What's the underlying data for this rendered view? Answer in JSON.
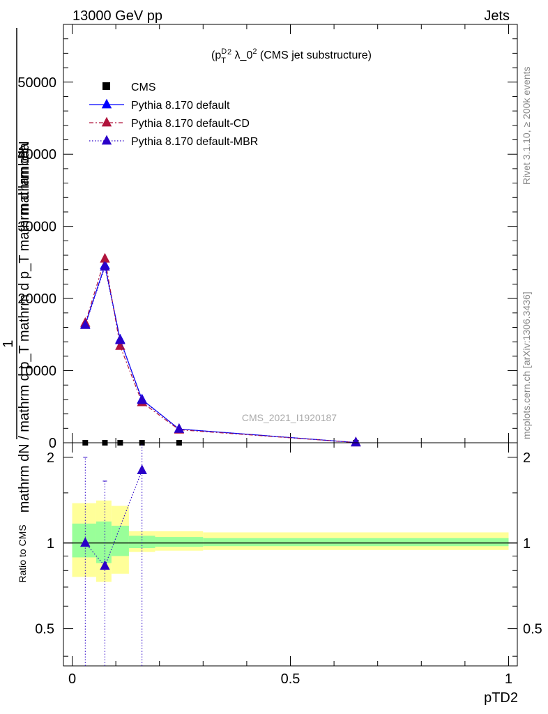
{
  "header": {
    "left": "13000 GeV pp",
    "right": "Jets"
  },
  "plot_title": "(p_T^D)^2 λ_0^2 (CMS jet substructure)",
  "watermark": "CMS_2021_I1920187",
  "side_labels": {
    "rivet": "Rivet 3.1.10, ≥ 200k events",
    "mcplots": "mcplots.cern.ch [arXiv:1306.3436]"
  },
  "ylabel_main_lines": [
    "1",
    "mathrm dN / mathrm d p_T mathrm d p_T mathrm d lambda",
    "mathrm d²N"
  ],
  "colors": {
    "cms": "#000000",
    "default": "#0000ff",
    "cd": "#b0143c",
    "mbr": "#2a00c8",
    "band_inner": "#99ff99",
    "band_outer": "#ffff99"
  },
  "chart_data": [
    {
      "type": "line",
      "panel": "main",
      "xlabel": "pTD2",
      "xlim": [
        -0.02,
        1.02
      ],
      "ylim": [
        0,
        58000
      ],
      "yticks": [
        0,
        10000,
        20000,
        30000,
        40000,
        50000
      ],
      "ytick_labels": [
        "0",
        "10000",
        "20000",
        "30000",
        "40000",
        "50000"
      ],
      "legend_position": "top-left",
      "series": [
        {
          "name": "CMS",
          "style": "square",
          "x": [
            0.03,
            0.075,
            0.11,
            0.16,
            0.245,
            0.65
          ],
          "y": [
            0,
            0,
            0,
            0,
            0,
            0
          ]
        },
        {
          "name": "Pythia 8.170 default",
          "style": "solid",
          "x": [
            0.03,
            0.075,
            0.11,
            0.16,
            0.245,
            0.65
          ],
          "y": [
            16400,
            24600,
            14300,
            6000,
            1900,
            30
          ],
          "err": [
            300,
            500,
            400,
            250,
            120,
            20
          ]
        },
        {
          "name": "Pythia 8.170 default-CD",
          "style": "dashdot",
          "x": [
            0.03,
            0.075,
            0.11,
            0.16,
            0.245,
            0.65
          ],
          "y": [
            16600,
            25500,
            13400,
            5600,
            1800,
            30
          ],
          "err": [
            300,
            600,
            400,
            250,
            120,
            20
          ]
        },
        {
          "name": "Pythia 8.170 default-MBR",
          "style": "dotted",
          "x": [
            0.03,
            0.075,
            0.11,
            0.16,
            0.245,
            0.65
          ],
          "y": [
            16300,
            24400,
            14200,
            5900,
            1900,
            30
          ],
          "err": [
            300,
            500,
            400,
            250,
            120,
            20
          ]
        }
      ]
    },
    {
      "type": "line",
      "panel": "ratio",
      "ylabel": "Ratio to CMS",
      "xlabel": "pTD2",
      "xlim": [
        -0.02,
        1.02
      ],
      "ylim": [
        0.37,
        2.25
      ],
      "log_y": true,
      "yticks": [
        0.5,
        1,
        2
      ],
      "ytick_labels": [
        "0.5",
        "1",
        "2"
      ],
      "xticks": [
        0,
        0.5,
        1
      ],
      "xtick_labels": [
        "0",
        "0.5",
        "1"
      ],
      "bands": [
        {
          "x0": 0.0,
          "x1": 0.055,
          "inner": [
            0.89,
            1.17
          ],
          "outer": [
            0.76,
            1.38
          ]
        },
        {
          "x0": 0.055,
          "x1": 0.09,
          "inner": [
            0.85,
            1.19
          ],
          "outer": [
            0.73,
            1.41
          ]
        },
        {
          "x0": 0.09,
          "x1": 0.13,
          "inner": [
            0.9,
            1.15
          ],
          "outer": [
            0.78,
            1.35
          ]
        },
        {
          "x0": 0.13,
          "x1": 0.19,
          "inner": [
            0.96,
            1.06
          ],
          "outer": [
            0.93,
            1.1
          ]
        },
        {
          "x0": 0.19,
          "x1": 0.3,
          "inner": [
            0.97,
            1.05
          ],
          "outer": [
            0.94,
            1.1
          ]
        },
        {
          "x0": 0.3,
          "x1": 1.0,
          "inner": [
            0.975,
            1.04
          ],
          "outer": [
            0.945,
            1.09
          ]
        }
      ],
      "series": [
        {
          "name": "Pythia 8.170 default-MBR",
          "style": "dotted",
          "x": [
            0.03,
            0.075,
            0.16
          ],
          "y": [
            1.0,
            0.83,
            1.8
          ],
          "err_low": [
            0.37,
            0.37,
            0.37
          ],
          "err_high": [
            2.0,
            1.65,
            2.25
          ]
        }
      ]
    }
  ]
}
